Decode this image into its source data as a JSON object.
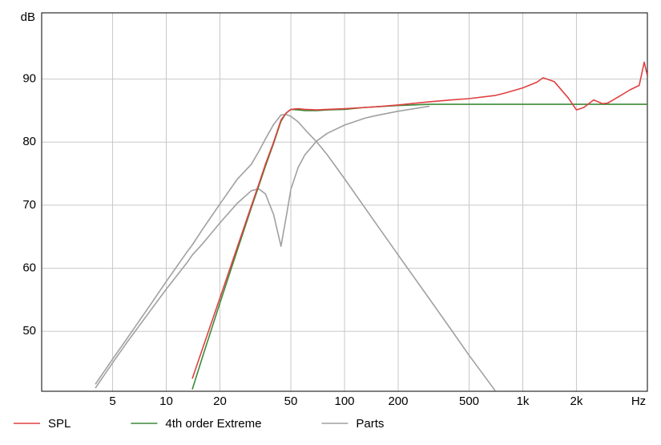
{
  "chart_data": {
    "type": "line",
    "y_label": "dB",
    "x_label": "Hz",
    "log_x": true,
    "grid": true,
    "xlim": [
      2,
      5000
    ],
    "ylim": [
      40.5,
      100.5
    ],
    "xticks": [
      5,
      10,
      20,
      50,
      100,
      200,
      500,
      {
        "value": 1000,
        "label": "1k"
      },
      {
        "value": 2000,
        "label": "2k"
      }
    ],
    "yticks": [
      50,
      60,
      70,
      80,
      90
    ],
    "legend": "bottom",
    "x": [
      4,
      5,
      6,
      8,
      10,
      13,
      14,
      16,
      20,
      25,
      30,
      33,
      36,
      40,
      44,
      47,
      50,
      55,
      60,
      70,
      80,
      100,
      130,
      150,
      200,
      300,
      400,
      500,
      700,
      800,
      1000,
      1200,
      1300,
      1500,
      1800,
      2000,
      2200,
      2500,
      2800,
      3000,
      3500,
      4000,
      4500,
      4800,
      5000
    ],
    "series": [
      {
        "name": "SPL",
        "color": "#e04040",
        "values": [
          null,
          null,
          null,
          null,
          null,
          null,
          42.5,
          47.3,
          55.3,
          63.3,
          69.9,
          73.3,
          76.5,
          80,
          83.5,
          84.6,
          85.2,
          85.3,
          85.2,
          85.1,
          85.2,
          85.3,
          85.5,
          85.6,
          85.9,
          86.4,
          86.7,
          86.9,
          87.4,
          87.8,
          88.6,
          89.5,
          90.2,
          89.6,
          87,
          85.1,
          85.5,
          86.7,
          86.1,
          86.2,
          87.3,
          88.3,
          89,
          92.7,
          90.5
        ]
      },
      {
        "name": "4th order Extreme",
        "color": "#3a8a3a",
        "values": [
          null,
          null,
          null,
          null,
          null,
          null,
          40.8,
          46,
          54.5,
          62.8,
          69.6,
          73,
          76.2,
          79.8,
          83.3,
          84.6,
          85.2,
          85.1,
          85,
          85,
          85.1,
          85.2,
          85.5,
          85.6,
          85.8,
          86,
          86,
          86,
          86,
          86,
          86,
          86,
          86,
          86,
          86,
          86,
          86,
          86,
          86,
          86,
          86,
          86,
          86,
          86,
          86
        ]
      },
      {
        "name": "Parts",
        "color": "#a0a0a0",
        "values": [
          41.6,
          45.6,
          48.8,
          53.9,
          57.9,
          62.5,
          63.7,
          66.2,
          70.2,
          74.1,
          76.5,
          78.5,
          80.5,
          82.8,
          84.3,
          84.4,
          84.1,
          83.2,
          82,
          80,
          78,
          74.2,
          69.6,
          67.1,
          62.1,
          55.1,
          50.1,
          46.2,
          40.6,
          null,
          null,
          null,
          null,
          null,
          null,
          null,
          null,
          null,
          null,
          null,
          null,
          null,
          null,
          null,
          null
        ]
      },
      {
        "color": "#a0a0a0",
        "values": [
          41,
          45,
          48.2,
          53,
          56.7,
          60.8,
          62.1,
          63.9,
          67.2,
          70.3,
          72.3,
          72.6,
          71.8,
          68.5,
          63.5,
          68,
          72.5,
          76,
          78,
          80.2,
          81.4,
          82.7,
          83.8,
          84.2,
          84.9,
          85.7,
          null,
          null,
          null,
          null,
          null,
          null,
          null,
          null,
          null,
          null,
          null,
          null,
          null,
          null,
          null,
          null,
          null,
          null,
          null
        ]
      }
    ]
  }
}
